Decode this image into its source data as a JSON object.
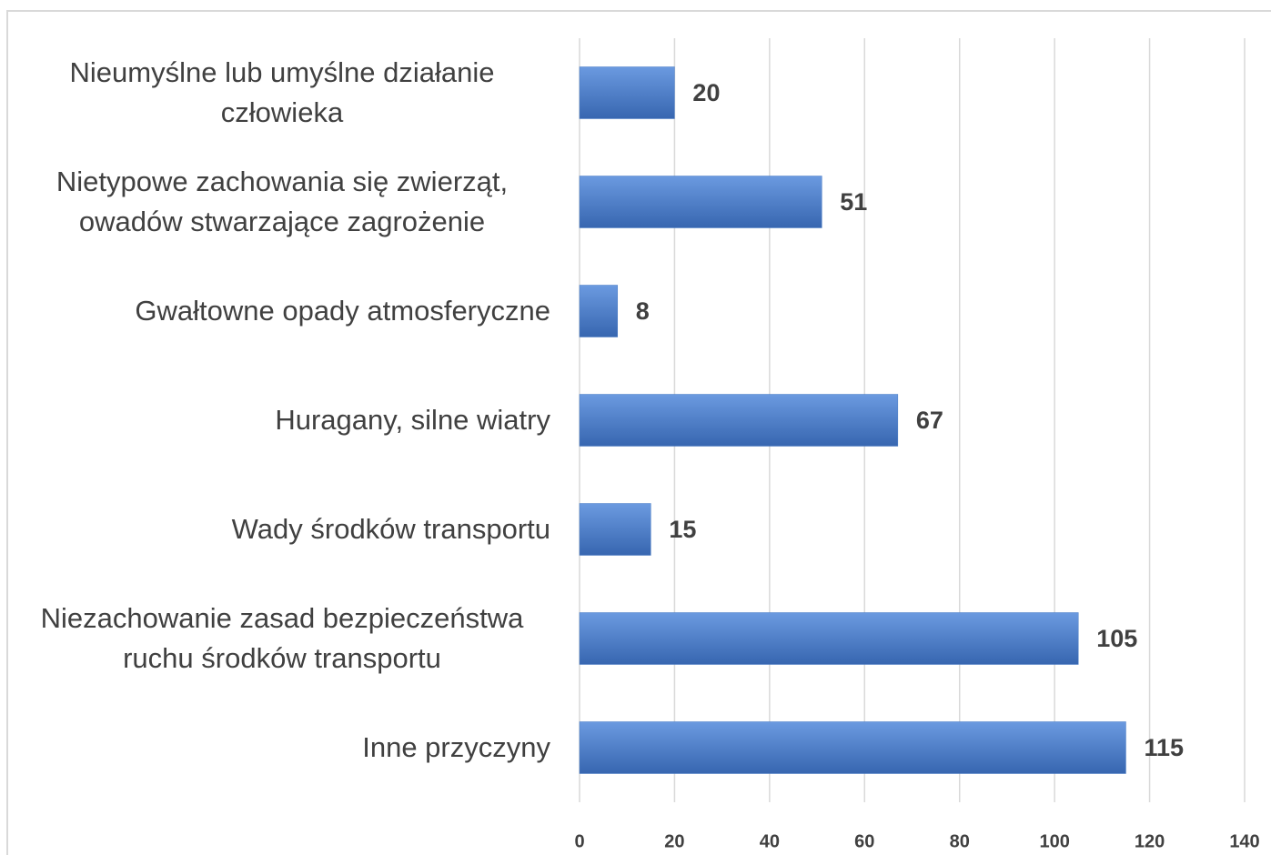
{
  "chart_data": {
    "type": "bar",
    "orientation": "horizontal",
    "categories": [
      "Nieumyślne lub umyślne działanie człowieka",
      "Nietypowe zachowania się zwierząt, owadów stwarzające zagrożenie",
      "Gwałtowne opady atmosferyczne",
      "Huragany, silne wiatry",
      "Wady środków transportu",
      "Niezachowanie zasad bezpieczeństwa ruchu środków transportu",
      "Inne przyczyny"
    ],
    "values": [
      20,
      51,
      8,
      67,
      15,
      105,
      115
    ],
    "color": "#4a7cc4",
    "xlim": [
      0,
      140
    ],
    "xticks": [
      0,
      20,
      40,
      60,
      80,
      100,
      120,
      140
    ],
    "grid": true
  }
}
